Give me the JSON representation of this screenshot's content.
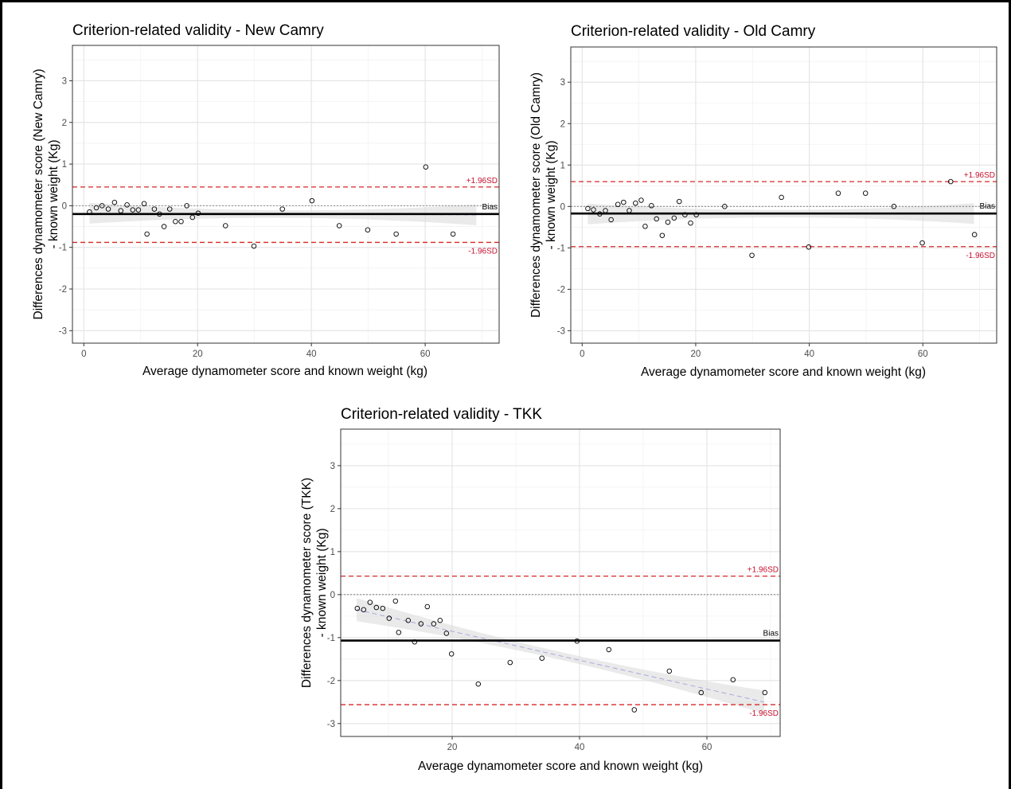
{
  "chart_data": [
    {
      "type": "scatter",
      "title": "Criterion-related validity - New Camry",
      "xlabel": "Average dynamometer score and known weight (kg)",
      "ylabel": [
        "Differences dynamometer score (New Camry)",
        "- known weight (Kg)"
      ],
      "xlim": [
        -2,
        73
      ],
      "ylim": [
        -3.3,
        3.85
      ],
      "xticks": [
        0,
        20,
        40,
        60
      ],
      "yticks": [
        -3,
        -2,
        -1,
        0,
        1,
        2,
        3
      ],
      "grid": true,
      "bias": -0.2,
      "upper_loa": 0.45,
      "lower_loa": -0.88,
      "bias_label": "Bias",
      "upper_label": "+1.96SD",
      "lower_label": "-1.96SD",
      "regression": {
        "x0": 1,
        "y0": -0.18,
        "x1": 69,
        "y1": -0.22
      },
      "points": [
        [
          1,
          -0.15
        ],
        [
          2.2,
          -0.05
        ],
        [
          3.2,
          0.0
        ],
        [
          4.3,
          -0.08
        ],
        [
          5.4,
          0.08
        ],
        [
          6.5,
          -0.12
        ],
        [
          7.6,
          0.02
        ],
        [
          8.6,
          -0.1
        ],
        [
          9.6,
          -0.1
        ],
        [
          10.6,
          0.05
        ],
        [
          11.1,
          -0.68
        ],
        [
          12.4,
          -0.08
        ],
        [
          13.3,
          -0.2
        ],
        [
          14.1,
          -0.5
        ],
        [
          15.1,
          -0.08
        ],
        [
          16.1,
          -0.38
        ],
        [
          17.1,
          -0.38
        ],
        [
          18.1,
          0.0
        ],
        [
          19.1,
          -0.28
        ],
        [
          20.1,
          -0.18
        ],
        [
          24.9,
          -0.48
        ],
        [
          29.9,
          -0.97
        ],
        [
          34.9,
          -0.08
        ],
        [
          40.1,
          0.12
        ],
        [
          44.9,
          -0.48
        ],
        [
          49.9,
          -0.58
        ],
        [
          54.9,
          -0.68
        ],
        [
          60.1,
          0.93
        ],
        [
          64.9,
          -0.68
        ]
      ]
    },
    {
      "type": "scatter",
      "title": "Criterion-related validity - Old Camry",
      "xlabel": "Average dynamometer score and known weight (kg)",
      "ylabel": [
        "Differences dynamometer score (Old Camry)",
        "- known weight (Kg)"
      ],
      "xlim": [
        -2,
        73
      ],
      "ylim": [
        -3.3,
        3.85
      ],
      "xticks": [
        0,
        20,
        40,
        60
      ],
      "yticks": [
        -3,
        -2,
        -1,
        0,
        1,
        2,
        3
      ],
      "grid": true,
      "bias": -0.17,
      "upper_loa": 0.6,
      "lower_loa": -0.97,
      "bias_label": "Bias",
      "upper_label": "+1.96SD",
      "lower_label": "-1.96SD",
      "regression": {
        "x0": 1,
        "y0": -0.18,
        "x1": 69,
        "y1": -0.17
      },
      "points": [
        [
          1,
          -0.05
        ],
        [
          2,
          -0.08
        ],
        [
          3.1,
          -0.18
        ],
        [
          4.1,
          -0.1
        ],
        [
          5.1,
          -0.32
        ],
        [
          6.3,
          0.05
        ],
        [
          7.3,
          0.1
        ],
        [
          8.3,
          -0.1
        ],
        [
          9.4,
          0.08
        ],
        [
          10.4,
          0.15
        ],
        [
          11.1,
          -0.48
        ],
        [
          12.2,
          0.02
        ],
        [
          13.1,
          -0.3
        ],
        [
          14.1,
          -0.7
        ],
        [
          15.1,
          -0.38
        ],
        [
          16.2,
          -0.28
        ],
        [
          17.1,
          0.12
        ],
        [
          18.1,
          -0.2
        ],
        [
          19.1,
          -0.4
        ],
        [
          20.1,
          -0.2
        ],
        [
          25.1,
          0.0
        ],
        [
          29.9,
          -1.18
        ],
        [
          35.1,
          0.22
        ],
        [
          39.9,
          -0.98
        ],
        [
          45.1,
          0.32
        ],
        [
          49.9,
          0.32
        ],
        [
          54.9,
          0.0
        ],
        [
          59.9,
          -0.88
        ],
        [
          64.9,
          0.6
        ],
        [
          69.1,
          -0.68
        ]
      ]
    },
    {
      "type": "scatter",
      "title": "Criterion-related validity - TKK",
      "xlabel": "Average dynamometer score and known weight (kg)",
      "ylabel": [
        "Differences dynamometer score (TKK)",
        "- known weight (Kg)"
      ],
      "xlim": [
        2.5,
        71.5
      ],
      "ylim": [
        -3.3,
        3.85
      ],
      "xticks": [
        20,
        40,
        60
      ],
      "yticks": [
        -3,
        -2,
        -1,
        0,
        1,
        2,
        3
      ],
      "grid": true,
      "bias": -1.07,
      "upper_loa": 0.43,
      "lower_loa": -2.56,
      "bias_label": "Bias",
      "upper_label": "+1.96SD",
      "lower_label": "-1.96SD",
      "regression": {
        "x0": 5,
        "y0": -0.35,
        "x1": 69,
        "y1": -2.5
      },
      "points": [
        [
          5.1,
          -0.32
        ],
        [
          6.1,
          -0.35
        ],
        [
          7.1,
          -0.18
        ],
        [
          8.1,
          -0.3
        ],
        [
          9.1,
          -0.32
        ],
        [
          10.1,
          -0.55
        ],
        [
          11.1,
          -0.15
        ],
        [
          11.6,
          -0.88
        ],
        [
          13.1,
          -0.6
        ],
        [
          14.1,
          -1.1
        ],
        [
          15.1,
          -0.68
        ],
        [
          16.1,
          -0.28
        ],
        [
          17.1,
          -0.68
        ],
        [
          18.1,
          -0.6
        ],
        [
          19.1,
          -0.9
        ],
        [
          19.9,
          -1.38
        ],
        [
          24.1,
          -2.08
        ],
        [
          29.1,
          -1.58
        ],
        [
          34.1,
          -1.48
        ],
        [
          39.6,
          -1.08
        ],
        [
          44.6,
          -1.28
        ],
        [
          48.6,
          -2.68
        ],
        [
          54.1,
          -1.78
        ],
        [
          59.1,
          -2.28
        ],
        [
          64.1,
          -1.98
        ],
        [
          69.1,
          -2.28
        ]
      ]
    }
  ]
}
